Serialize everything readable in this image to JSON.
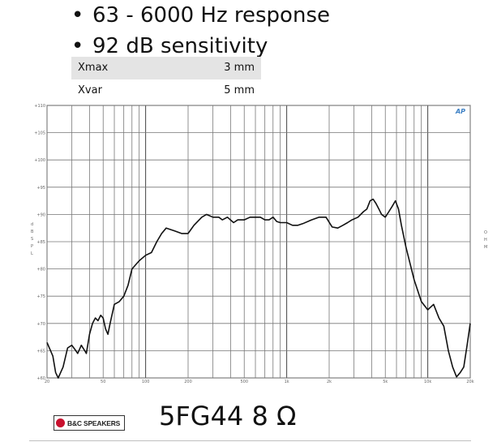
{
  "bullets": [
    "63 - 6000 Hz response",
    "92 dB sensitivity"
  ],
  "specs": [
    {
      "label": "Xmax",
      "value": "3 mm"
    },
    {
      "label": "Xvar",
      "value": "5 mm"
    }
  ],
  "chart_data": {
    "type": "line",
    "xscale": "log",
    "xlim": [
      20,
      20000
    ],
    "ylim": [
      60,
      110
    ],
    "grid": true,
    "xlabel": "Hz",
    "ylabel": "dBSPL",
    "right_label": "OHM",
    "badge": "AP",
    "x_ticks": [
      {
        "v": 20,
        "label": "20"
      },
      {
        "v": 50,
        "label": "50"
      },
      {
        "v": 100,
        "label": "100"
      },
      {
        "v": 200,
        "label": "200"
      },
      {
        "v": 500,
        "label": "500"
      },
      {
        "v": 1000,
        "label": "1k"
      },
      {
        "v": 2000,
        "label": "2k"
      },
      {
        "v": 5000,
        "label": "5k"
      },
      {
        "v": 10000,
        "label": "10k"
      },
      {
        "v": 20000,
        "label": "20k"
      }
    ],
    "y_ticks": [
      {
        "v": 110,
        "label": "+110"
      },
      {
        "v": 105,
        "label": "+105"
      },
      {
        "v": 100,
        "label": "+100"
      },
      {
        "v": 95,
        "label": "+95"
      },
      {
        "v": 90,
        "label": "+90"
      },
      {
        "v": 85,
        "label": "+85"
      },
      {
        "v": 80,
        "label": "+80"
      },
      {
        "v": 75,
        "label": "+75"
      },
      {
        "v": 70,
        "label": "+70"
      },
      {
        "v": 65,
        "label": "+65"
      },
      {
        "v": 60,
        "label": "+60"
      }
    ],
    "series": [
      {
        "values": [
          [
            20,
            66.5
          ],
          [
            22,
            64
          ],
          [
            23,
            61
          ],
          [
            24,
            60
          ],
          [
            26,
            62
          ],
          [
            28,
            65.5
          ],
          [
            30,
            66
          ],
          [
            32,
            65
          ],
          [
            33,
            64.5
          ],
          [
            35,
            66
          ],
          [
            37,
            65
          ],
          [
            38,
            64.5
          ],
          [
            40,
            68
          ],
          [
            42,
            70
          ],
          [
            44,
            71
          ],
          [
            46,
            70.5
          ],
          [
            48,
            71.5
          ],
          [
            50,
            71
          ],
          [
            52,
            69
          ],
          [
            54,
            68
          ],
          [
            56,
            70
          ],
          [
            60,
            73.5
          ],
          [
            65,
            74
          ],
          [
            70,
            75
          ],
          [
            75,
            77
          ],
          [
            80,
            80
          ],
          [
            90,
            81.5
          ],
          [
            100,
            82.5
          ],
          [
            110,
            83
          ],
          [
            120,
            85
          ],
          [
            130,
            86.5
          ],
          [
            140,
            87.5
          ],
          [
            160,
            87
          ],
          [
            180,
            86.5
          ],
          [
            200,
            86.5
          ],
          [
            220,
            88
          ],
          [
            250,
            89.5
          ],
          [
            270,
            90
          ],
          [
            300,
            89.5
          ],
          [
            330,
            89.5
          ],
          [
            350,
            89
          ],
          [
            380,
            89.5
          ],
          [
            420,
            88.5
          ],
          [
            450,
            89
          ],
          [
            500,
            89
          ],
          [
            550,
            89.5
          ],
          [
            600,
            89.5
          ],
          [
            650,
            89.5
          ],
          [
            700,
            89
          ],
          [
            750,
            89
          ],
          [
            800,
            89.5
          ],
          [
            850,
            88.7
          ],
          [
            900,
            88.5
          ],
          [
            1000,
            88.5
          ],
          [
            1100,
            88
          ],
          [
            1200,
            88
          ],
          [
            1300,
            88.3
          ],
          [
            1500,
            89
          ],
          [
            1700,
            89.5
          ],
          [
            1900,
            89.5
          ],
          [
            2100,
            87.7
          ],
          [
            2300,
            87.5
          ],
          [
            2500,
            88
          ],
          [
            2700,
            88.5
          ],
          [
            2900,
            89
          ],
          [
            3200,
            89.5
          ],
          [
            3500,
            90.5
          ],
          [
            3700,
            91
          ],
          [
            3900,
            92.5
          ],
          [
            4100,
            92.8
          ],
          [
            4300,
            92
          ],
          [
            4500,
            91
          ],
          [
            4700,
            90
          ],
          [
            5000,
            89.5
          ],
          [
            5300,
            90.5
          ],
          [
            5600,
            91.5
          ],
          [
            5900,
            92.5
          ],
          [
            6200,
            91
          ],
          [
            6500,
            88
          ],
          [
            7000,
            84
          ],
          [
            8000,
            78
          ],
          [
            9000,
            74
          ],
          [
            10000,
            72.5
          ],
          [
            11000,
            73.5
          ],
          [
            12000,
            71
          ],
          [
            13000,
            69.5
          ],
          [
            14000,
            65
          ],
          [
            15000,
            62
          ],
          [
            16000,
            60.2
          ],
          [
            17000,
            61
          ],
          [
            18000,
            62
          ],
          [
            19000,
            66
          ],
          [
            20000,
            70
          ]
        ]
      }
    ]
  },
  "logo_text": "B&C SPEAKERS",
  "model_title": "5FG44 8 Ω"
}
